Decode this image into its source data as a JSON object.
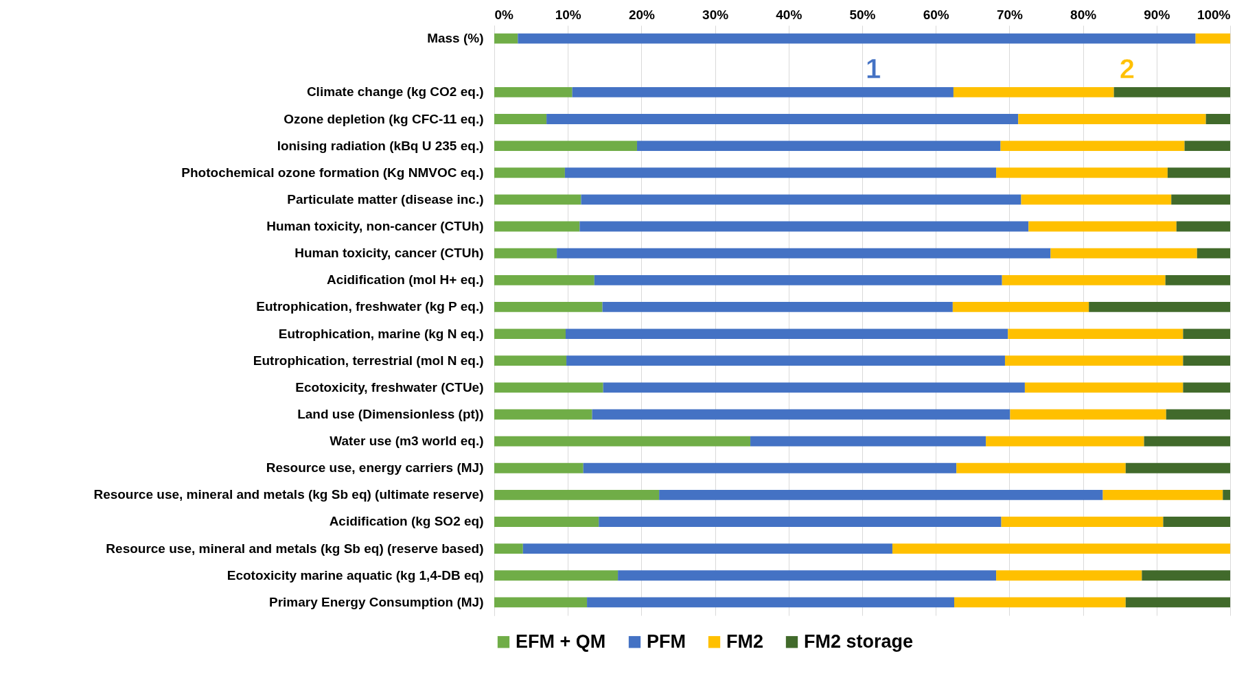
{
  "chart_data": {
    "type": "bar",
    "orientation": "horizontal",
    "stacked": true,
    "categories": [
      "Mass (%)",
      null,
      "Climate change (kg CO2 eq.)",
      "Ozone depletion (kg CFC-11 eq.)",
      "Ionising radiation (kBq U 235 eq.)",
      "Photochemical ozone formation (Kg NMVOC eq.)",
      "Particulate matter (disease inc.)",
      "Human toxicity, non-cancer (CTUh)",
      "Human toxicity, cancer (CTUh)",
      "Acidification (mol H+ eq.)",
      "Eutrophication, freshwater (kg P eq.)",
      "Eutrophication, marine (kg N eq.)",
      "Eutrophication, terrestrial (mol N eq.)",
      "Ecotoxicity, freshwater (CTUe)",
      "Land use (Dimensionless (pt))",
      "Water use (m3 world eq.)",
      "Resource use, energy carriers (MJ)",
      "Resource use, mineral and metals  (kg Sb eq) (ultimate reserve)",
      "Acidification (kg SO2 eq)",
      "Resource use, mineral and metals (kg Sb eq) (reserve based)",
      "Ecotoxicity marine aquatic (kg 1,4-DB eq)",
      "Primary Energy Consumption (MJ)"
    ],
    "series": [
      {
        "name": "EFM + QM",
        "color": "#70ad47",
        "values": [
          3.2,
          null,
          10.6,
          7.1,
          19.4,
          9.6,
          11.8,
          11.6,
          8.5,
          13.6,
          14.7,
          9.7,
          9.8,
          14.8,
          13.3,
          34.8,
          12.1,
          22.4,
          14.2,
          3.9,
          16.8,
          12.6
        ]
      },
      {
        "name": "PFM",
        "color": "#4472c4",
        "values": [
          92.1,
          null,
          51.8,
          64.1,
          49.4,
          58.6,
          59.8,
          61.0,
          67.1,
          55.4,
          47.6,
          60.1,
          59.6,
          57.3,
          56.8,
          32.0,
          50.7,
          60.3,
          54.7,
          50.2,
          51.4,
          49.9
        ]
      },
      {
        "name": "FM2",
        "color": "#ffc000",
        "values": [
          4.7,
          null,
          21.8,
          25.5,
          25.0,
          23.3,
          20.4,
          20.1,
          19.9,
          22.2,
          18.5,
          23.8,
          24.2,
          21.5,
          21.2,
          21.5,
          23.0,
          16.3,
          22.0,
          45.9,
          19.8,
          23.3
        ]
      },
      {
        "name": "FM2 storage",
        "color": "#416a2b",
        "values": [
          0,
          null,
          15.8,
          3.3,
          6.2,
          8.5,
          8.0,
          7.3,
          4.5,
          8.8,
          19.2,
          6.4,
          6.4,
          6.4,
          8.7,
          11.7,
          14.2,
          1.0,
          9.1,
          0,
          12.0,
          14.2
        ]
      }
    ],
    "xlim": [
      0,
      100
    ],
    "xticks": [
      {
        "value": 0,
        "label": "0%"
      },
      {
        "value": 10,
        "label": "10%"
      },
      {
        "value": 20,
        "label": "20%"
      },
      {
        "value": 30,
        "label": "30%"
      },
      {
        "value": 40,
        "label": "40%"
      },
      {
        "value": 50,
        "label": "50%"
      },
      {
        "value": 60,
        "label": "60%"
      },
      {
        "value": 70,
        "label": "70%"
      },
      {
        "value": 80,
        "label": "80%"
      },
      {
        "value": 90,
        "label": "90%"
      },
      {
        "value": 100,
        "label": "100%"
      }
    ],
    "grid": "x",
    "legend": "bottom",
    "annotations": [
      "1",
      "2"
    ]
  }
}
